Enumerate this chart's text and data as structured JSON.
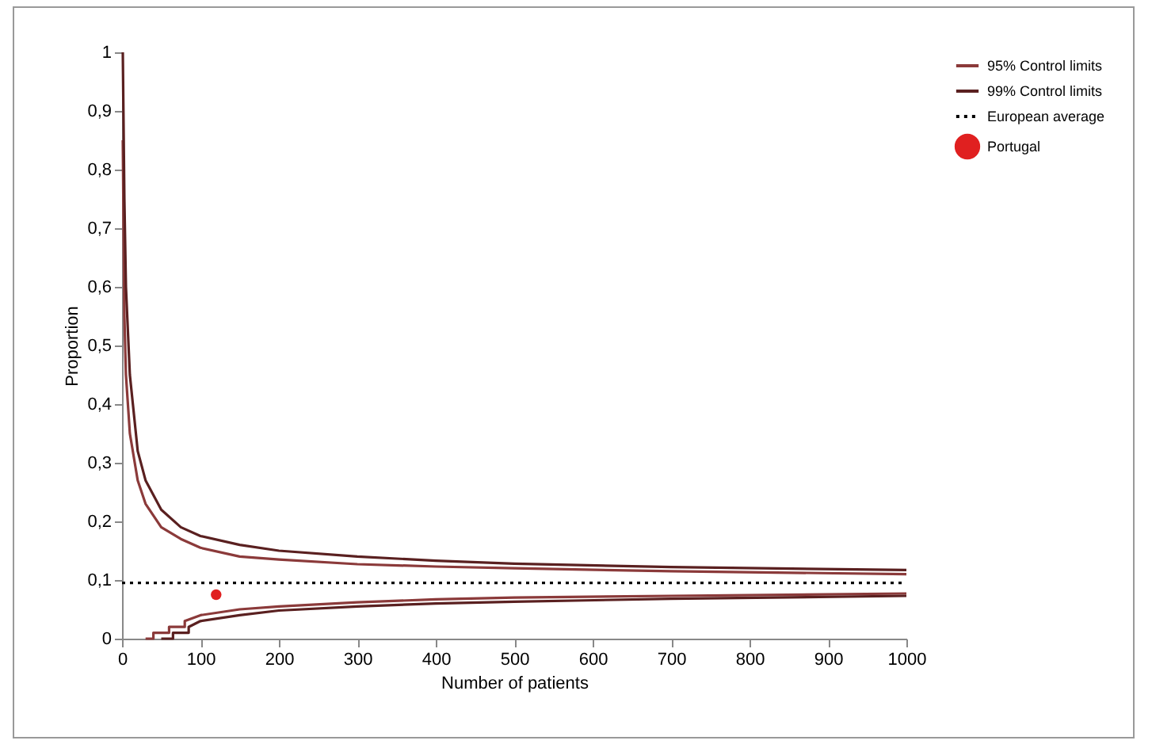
{
  "chart_data": {
    "type": "line",
    "xlabel": "Number of patients",
    "ylabel": "Proportion",
    "xlim": [
      0,
      1000
    ],
    "xticks": [
      0,
      100,
      200,
      300,
      400,
      500,
      600,
      700,
      800,
      900,
      1000
    ],
    "ylim": [
      0,
      1
    ],
    "yticks": [
      0,
      {
        "value": 0.1,
        "label": "0,1"
      },
      {
        "value": 0.2,
        "label": "0,2"
      },
      {
        "value": 0.3,
        "label": "0,3"
      },
      {
        "value": 0.4,
        "label": "0,4"
      },
      {
        "value": 0.5,
        "label": "0,5"
      },
      {
        "value": 0.6,
        "label": "0,6"
      },
      {
        "value": 0.7,
        "label": "0,7"
      },
      {
        "value": 0.8,
        "label": "0,8"
      },
      {
        "value": 0.9,
        "label": "0,9"
      },
      1
    ],
    "grid": false,
    "legend": "right",
    "marker": "none",
    "series": [
      {
        "name": "95% Control limits",
        "color": "#8b3a3a",
        "line_style": "solid",
        "x": [
          1,
          3,
          5,
          10,
          20,
          30,
          50,
          75,
          100,
          150,
          200,
          300,
          400,
          500,
          700,
          1000
        ],
        "values": [
          0.85,
          0.55,
          0.45,
          0.35,
          0.27,
          0.23,
          0.19,
          0.17,
          0.155,
          0.14,
          0.135,
          0.127,
          0.123,
          0.12,
          0.115,
          0.11
        ]
      },
      {
        "color": "#8b3a3a",
        "line_style": "solid",
        "x": [
          30,
          40,
          40,
          60,
          60,
          80,
          80,
          100,
          150,
          200,
          300,
          400,
          500,
          700,
          1000
        ],
        "values": [
          0,
          0,
          0.01,
          0.01,
          0.02,
          0.02,
          0.03,
          0.04,
          0.05,
          0.055,
          0.062,
          0.067,
          0.07,
          0.073,
          0.077
        ]
      },
      {
        "name": "99% Control limits",
        "color": "#5a2020",
        "line_style": "solid",
        "x": [
          1,
          3,
          5,
          10,
          20,
          30,
          50,
          75,
          100,
          150,
          200,
          300,
          400,
          500,
          700,
          1000
        ],
        "values": [
          1,
          0.75,
          0.6,
          0.45,
          0.32,
          0.27,
          0.22,
          0.19,
          0.175,
          0.16,
          0.15,
          0.14,
          0.133,
          0.128,
          0.122,
          0.117
        ]
      },
      {
        "color": "#5a2020",
        "line_style": "solid",
        "x": [
          50,
          65,
          65,
          85,
          85,
          100,
          150,
          200,
          300,
          400,
          500,
          700,
          1000
        ],
        "values": [
          0,
          0,
          0.01,
          0.01,
          0.02,
          0.03,
          0.04,
          0.048,
          0.055,
          0.06,
          0.063,
          0.068,
          0.073
        ]
      },
      {
        "name": "European average",
        "color": "#000000",
        "line_style": "dotted",
        "x": [
          0,
          1000
        ],
        "values": [
          0.095,
          0.095
        ]
      },
      {
        "name": "Portugal",
        "type": "scatter",
        "color": "#e02020",
        "marker": "circle",
        "x": [
          120
        ],
        "values": [
          0.075
        ]
      }
    ]
  }
}
